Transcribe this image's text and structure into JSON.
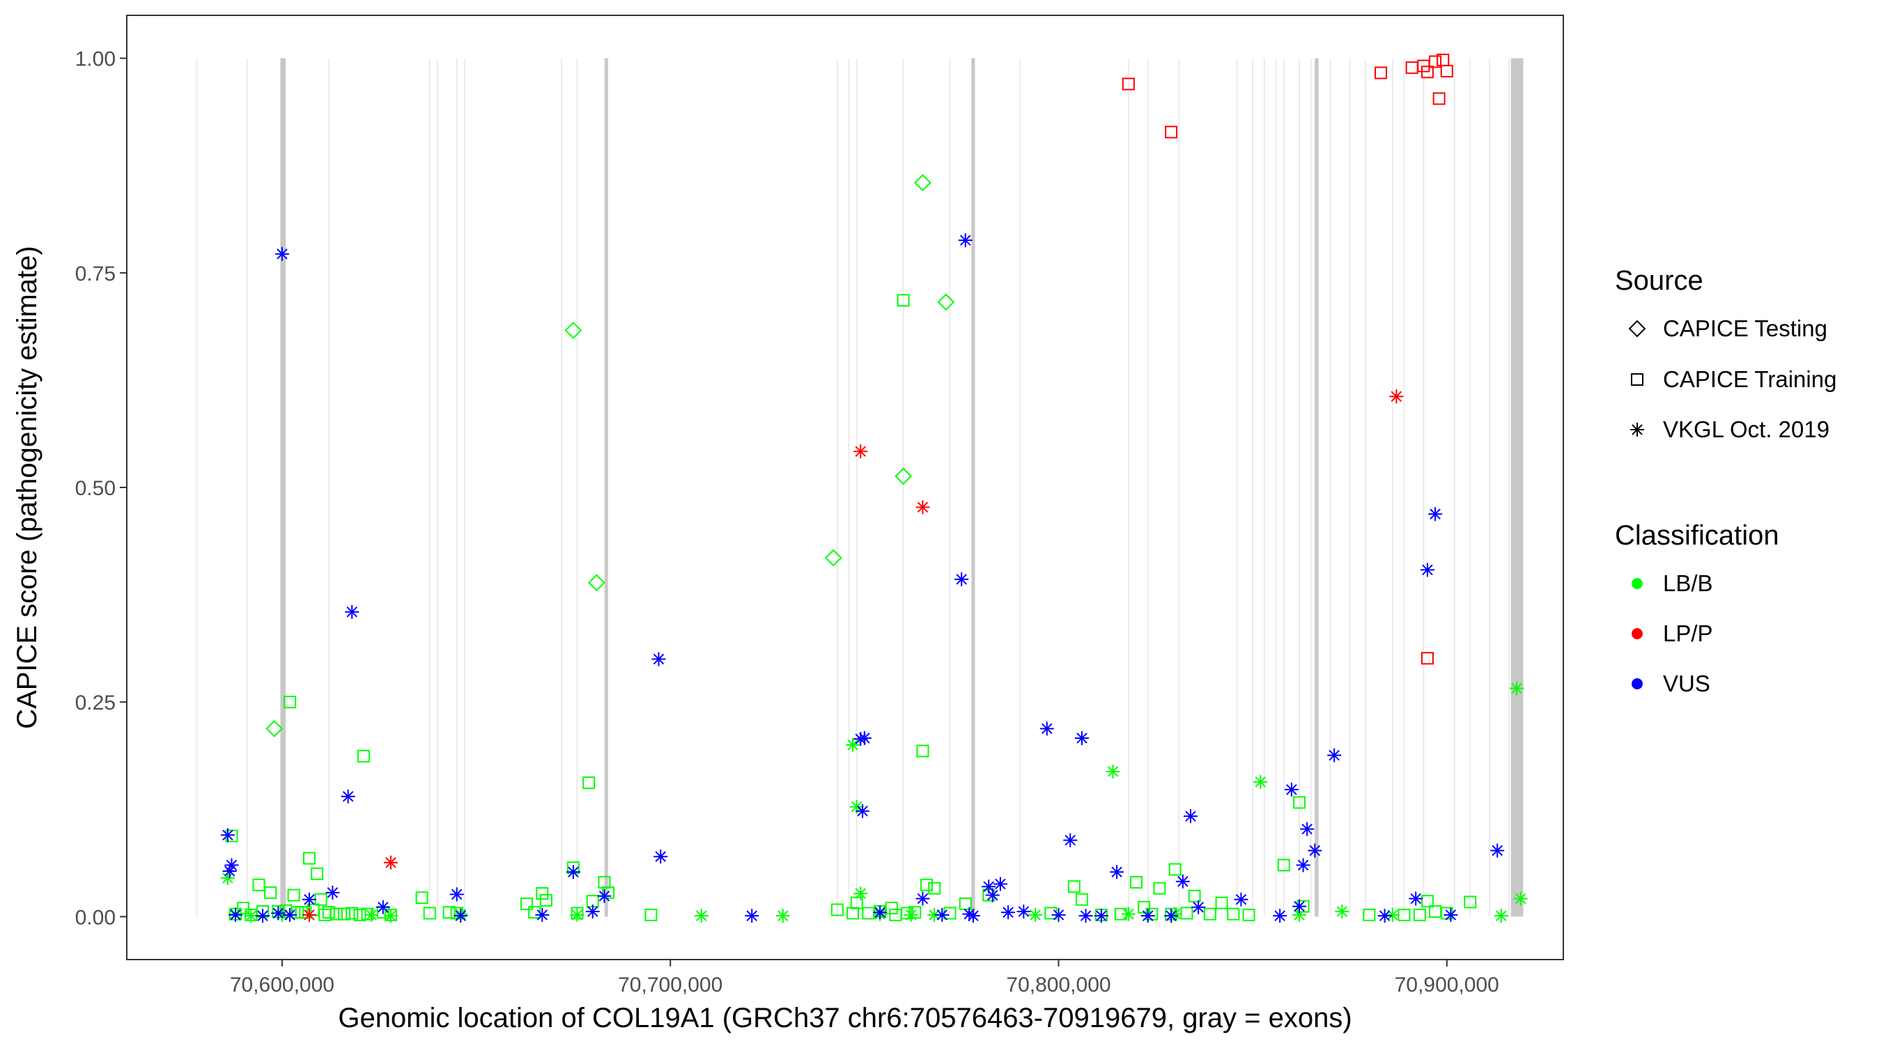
{
  "chart_data": {
    "type": "scatter",
    "title": "",
    "xlabel": "Genomic location of COL19A1 (GRCh37 chr6:70576463-70919679, gray = exons)",
    "ylabel": "CAPICE score (pathogenicity estimate)",
    "xlim": [
      70560000,
      70930000
    ],
    "ylim": [
      -0.05,
      1.05
    ],
    "x_ticks": [
      70600000,
      70700000,
      70800000,
      70900000
    ],
    "x_tick_labels": [
      "70,600,000",
      "70,700,000",
      "70,800,000",
      "70,900,000"
    ],
    "y_ticks": [
      0,
      0.25,
      0.5,
      0.75,
      1.0
    ],
    "y_tick_labels": [
      "0.00",
      "0.25",
      "0.50",
      "0.75",
      "1.00"
    ],
    "grid": false,
    "exons": [
      70578000,
      70591000,
      70600000,
      70600600,
      70612000,
      70638000,
      70640000,
      70645000,
      70647000,
      70672000,
      70676000,
      70683500,
      70743000,
      70746000,
      70748000,
      70760000,
      70772000,
      70778000,
      70790000,
      70818000,
      70823000,
      70831000,
      70846000,
      70850000,
      70853000,
      70856000,
      70858000,
      70862000,
      70865000,
      70866000,
      70870000,
      70875000,
      70879000,
      70886000,
      70889000,
      70894000,
      70902000,
      70906000,
      70911000,
      70916000,
      70917000,
      70918000,
      70919000
    ],
    "exon_bold": [
      70600000,
      70600500,
      70683500,
      70778000,
      70866500
    ],
    "exon_block": [
      70916500,
      70919679
    ],
    "legend": {
      "source_title": "Source",
      "source_items": [
        {
          "label": "CAPICE Testing",
          "shape": "diamond"
        },
        {
          "label": "CAPICE Training",
          "shape": "square"
        },
        {
          "label": "VKGL Oct. 2019",
          "shape": "asterisk"
        }
      ],
      "class_title": "Classification",
      "class_items": [
        {
          "label": "LB/B",
          "color": "#00ff00"
        },
        {
          "label": "LP/P",
          "color": "#ff0000"
        },
        {
          "label": "VUS",
          "color": "#0000ff"
        }
      ],
      "position": "right"
    },
    "colors": {
      "LB/B": "#00ff00",
      "LP/P": "#ff0000",
      "VUS": "#0000ff"
    },
    "series": [
      {
        "name": "CAPICE Testing / LB/B",
        "source": "CAPICE Testing",
        "classification": "LB/B",
        "x": [
          70598000,
          70675000,
          70681000,
          70742000,
          70760000,
          70765000,
          70771000
        ],
        "y": [
          0.219,
          0.683,
          0.389,
          0.418,
          0.513,
          0.855,
          0.716
        ]
      },
      {
        "name": "CAPICE Training / LB/B",
        "source": "CAPICE Training",
        "classification": "LB/B",
        "x": [
          70587000,
          70588000,
          70590000,
          70592000,
          70594000,
          70595000,
          70597000,
          70599000,
          70601000,
          70602000,
          70603000,
          70604000,
          70605000,
          70606000,
          70607000,
          70608000,
          70609000,
          70610000,
          70611000,
          70612000,
          70614000,
          70616000,
          70618000,
          70620000,
          70621000,
          70622000,
          70626000,
          70628000,
          70636000,
          70638000,
          70643000,
          70645000,
          70663000,
          70665000,
          70667000,
          70668000,
          70675000,
          70676000,
          70679000,
          70680000,
          70683000,
          70684000,
          70695000,
          70743000,
          70747000,
          70748000,
          70751000,
          70754000,
          70757000,
          70758000,
          70760000,
          70761000,
          70763000,
          70765000,
          70766000,
          70768000,
          70772000,
          70776000,
          70782000,
          70798000,
          70804000,
          70806000,
          70811000,
          70816000,
          70820000,
          70822000,
          70824000,
          70826000,
          70829000,
          70830000,
          70833000,
          70835000,
          70839000,
          70842000,
          70845000,
          70849000,
          70858000,
          70862000,
          70863000,
          70880000,
          70889000,
          70893000,
          70895000,
          70897000,
          70900000,
          70906000
        ],
        "y": [
          0.094,
          0.003,
          0.01,
          0.002,
          0.037,
          0.006,
          0.028,
          0.006,
          0.007,
          0.25,
          0.025,
          0.005,
          0.005,
          0.005,
          0.068,
          0.008,
          0.05,
          0.02,
          0.002,
          0.005,
          0.003,
          0.003,
          0.004,
          0.002,
          0.187,
          0.003,
          0.005,
          0.002,
          0.022,
          0.004,
          0.005,
          0.004,
          0.015,
          0.005,
          0.027,
          0.019,
          0.057,
          0.004,
          0.156,
          0.018,
          0.04,
          0.028,
          0.002,
          0.008,
          0.004,
          0.016,
          0.004,
          0.006,
          0.01,
          0.002,
          0.718,
          0.004,
          0.005,
          0.193,
          0.037,
          0.033,
          0.004,
          0.015,
          0.025,
          0.004,
          0.035,
          0.02,
          0.002,
          0.003,
          0.04,
          0.011,
          0.003,
          0.033,
          0.003,
          0.055,
          0.004,
          0.024,
          0.003,
          0.016,
          0.003,
          0.002,
          0.06,
          0.133,
          0.012,
          0.002,
          0.002,
          0.002,
          0.018,
          0.006,
          0.004,
          0.017
        ]
      },
      {
        "name": "CAPICE Training / LP/P",
        "source": "CAPICE Training",
        "classification": "LP/P",
        "x": [
          70818000,
          70829000,
          70883000,
          70891000,
          70894000,
          70895000,
          70897000,
          70898000,
          70899000,
          70900000,
          70895000
        ],
        "y": [
          0.97,
          0.914,
          0.983,
          0.989,
          0.991,
          0.984,
          0.996,
          0.953,
          0.998,
          0.985,
          0.301
        ]
      },
      {
        "name": "VKGL Oct. 2019 / LB/B",
        "source": "VKGL Oct. 2019",
        "classification": "LB/B",
        "x": [
          70586000,
          70588000,
          70592000,
          70600000,
          70623000,
          70628000,
          70646000,
          70676000,
          70708000,
          70729000,
          70747000,
          70748000,
          70749000,
          70754000,
          70762000,
          70768000,
          70794000,
          70814000,
          70818000,
          70830000,
          70852000,
          70862000,
          70873000,
          70886000,
          70914000,
          70918000,
          70919000
        ],
        "y": [
          0.045,
          0.003,
          0.001,
          0.002,
          0.002,
          0.001,
          0.003,
          0.002,
          0.001,
          0.001,
          0.2,
          0.128,
          0.027,
          0.003,
          0.002,
          0.002,
          0.002,
          0.169,
          0.003,
          0.003,
          0.157,
          0.002,
          0.006,
          0.002,
          0.001,
          0.266,
          0.021
        ]
      },
      {
        "name": "VKGL Oct. 2019 / LP/P",
        "source": "VKGL Oct. 2019",
        "classification": "LP/P",
        "x": [
          70607000,
          70628000,
          70749000,
          70765000,
          70887000
        ],
        "y": [
          0.002,
          0.063,
          0.542,
          0.477,
          0.606
        ]
      },
      {
        "name": "VKGL Oct. 2019 / VUS",
        "source": "VKGL Oct. 2019",
        "classification": "VUS",
        "x": [
          70586000,
          70587000,
          70586500,
          70588000,
          70595000,
          70599000,
          70600000,
          70602000,
          70607000,
          70613000,
          70617000,
          70618000,
          70626000,
          70645000,
          70646000,
          70667000,
          70675000,
          70680000,
          70683000,
          70697000,
          70697500,
          70721000,
          70749000,
          70750000,
          70749500,
          70754000,
          70765000,
          70770000,
          70775000,
          70776000,
          70777000,
          70778000,
          70782000,
          70783000,
          70785000,
          70787000,
          70791000,
          70797000,
          70800000,
          70803000,
          70806000,
          70807000,
          70811000,
          70815000,
          70823000,
          70829000,
          70832000,
          70834000,
          70836000,
          70847000,
          70857000,
          70860000,
          70862000,
          70863000,
          70864000,
          70866000,
          70871000,
          70884000,
          70892000,
          70895000,
          70897000,
          70901000,
          70913000
        ],
        "y": [
          0.095,
          0.06,
          0.053,
          0.002,
          0.001,
          0.004,
          0.772,
          0.002,
          0.02,
          0.028,
          0.14,
          0.355,
          0.011,
          0.026,
          0.001,
          0.002,
          0.052,
          0.006,
          0.024,
          0.3,
          0.07,
          0.001,
          0.207,
          0.208,
          0.123,
          0.005,
          0.021,
          0.002,
          0.393,
          0.788,
          0.003,
          0.001,
          0.035,
          0.025,
          0.038,
          0.005,
          0.006,
          0.219,
          0.002,
          0.089,
          0.208,
          0.001,
          0.001,
          0.052,
          0.001,
          0.001,
          0.041,
          0.117,
          0.011,
          0.02,
          0.001,
          0.148,
          0.012,
          0.06,
          0.102,
          0.077,
          0.188,
          0.001,
          0.021,
          0.404,
          0.469,
          0.002,
          0.077
        ]
      }
    ]
  }
}
